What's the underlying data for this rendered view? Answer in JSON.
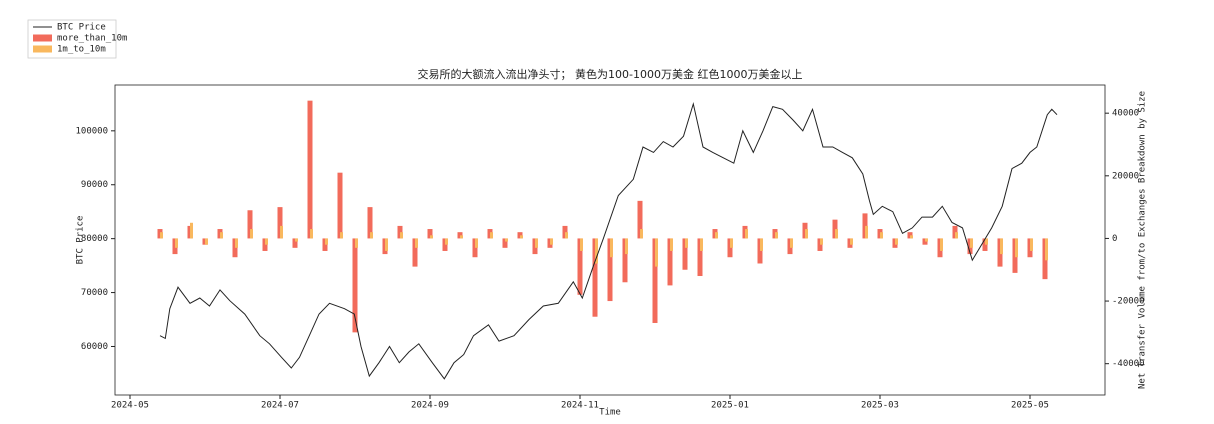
{
  "chart_data": {
    "type": "combo",
    "title": "交易所的大额流入流出净头寸； 黄色为100-1000万美金 红色1000万美金以上",
    "xlabel": "Time",
    "ylabel": "BTC Price",
    "y2label": "Net Transfer Volume from/to Exchanges Breakdown by Size",
    "legend": "upper left",
    "xlim": [
      4.8,
      18
    ],
    "xticks": [
      {
        "value": 5,
        "label": "2024-05"
      },
      {
        "value": 7,
        "label": "2024-07"
      },
      {
        "value": 9,
        "label": "2024-09"
      },
      {
        "value": 11,
        "label": "2024-11"
      },
      {
        "value": 13,
        "label": "2025-01"
      },
      {
        "value": 15,
        "label": "2025-03"
      },
      {
        "value": 17,
        "label": "2025-05"
      }
    ],
    "ylim": [
      51000,
      108500
    ],
    "yticks": [
      60000,
      70000,
      80000,
      90000,
      100000
    ],
    "y2lim": [
      -50000,
      49000
    ],
    "y2ticks": [
      -40000,
      -20000,
      0,
      20000,
      40000
    ],
    "series": [
      {
        "name": "BTC Price",
        "type": "line",
        "color": "#222222",
        "x": [
          5.4,
          5.47,
          5.53,
          5.64,
          5.8,
          5.93,
          6.06,
          6.2,
          6.33,
          6.53,
          6.73,
          6.86,
          7.02,
          7.15,
          7.26,
          7.39,
          7.52,
          7.66,
          7.86,
          7.99,
          8.08,
          8.19,
          8.32,
          8.46,
          8.59,
          8.72,
          8.85,
          9.03,
          9.19,
          9.32,
          9.45,
          9.58,
          9.78,
          9.92,
          10.12,
          10.32,
          10.51,
          10.71,
          10.91,
          11.03,
          11.18,
          11.31,
          11.51,
          11.71,
          11.84,
          11.98,
          12.11,
          12.24,
          12.38,
          12.51,
          12.64,
          12.77,
          12.91,
          13.05,
          13.17,
          13.31,
          13.44,
          13.57,
          13.7,
          13.84,
          13.97,
          14.1,
          14.24,
          14.37,
          14.5,
          14.63,
          14.77,
          14.86,
          14.91,
          15.03,
          15.17,
          15.3,
          15.43,
          15.56,
          15.7,
          15.83,
          15.96,
          16.1,
          16.23,
          16.36,
          16.49,
          16.63,
          16.76,
          16.89,
          17.0,
          17.09,
          17.23,
          17.29,
          17.36
        ],
        "values": [
          62000,
          61500,
          67000,
          71000,
          68000,
          69000,
          67500,
          70500,
          68500,
          66000,
          62000,
          60500,
          58000,
          56000,
          58000,
          62000,
          66000,
          68000,
          67000,
          66000,
          60000,
          54500,
          57000,
          60000,
          57000,
          59000,
          60500,
          57000,
          54000,
          57000,
          58500,
          62000,
          64000,
          61000,
          62000,
          65000,
          67500,
          68000,
          72000,
          69000,
          75000,
          80000,
          88000,
          91000,
          97000,
          96000,
          98000,
          97000,
          99000,
          105000,
          97000,
          96000,
          95000,
          94000,
          100000,
          96000,
          100000,
          104500,
          104000,
          102000,
          100000,
          104000,
          97000,
          97000,
          96000,
          95000,
          92000,
          87000,
          84500,
          86000,
          85000,
          81000,
          82000,
          84000,
          84000,
          86000,
          83000,
          82000,
          76000,
          79000,
          82000,
          86000,
          93000,
          94000,
          96000,
          97000,
          103000,
          104000,
          103000
        ]
      },
      {
        "name": "more_than_10m",
        "type": "bar",
        "axis": "y2",
        "color": "#f26b5b",
        "x": [
          5.4,
          5.6,
          5.8,
          6.0,
          6.2,
          6.4,
          6.6,
          6.8,
          7.0,
          7.2,
          7.4,
          7.6,
          7.8,
          8.0,
          8.2,
          8.4,
          8.6,
          8.8,
          9.0,
          9.2,
          9.4,
          9.6,
          9.8,
          10.0,
          10.2,
          10.4,
          10.6,
          10.8,
          11.0,
          11.2,
          11.4,
          11.6,
          11.8,
          12.0,
          12.2,
          12.4,
          12.6,
          12.8,
          13.0,
          13.2,
          13.4,
          13.6,
          13.8,
          14.0,
          14.2,
          14.4,
          14.6,
          14.8,
          15.0,
          15.2,
          15.4,
          15.6,
          15.8,
          16.0,
          16.2,
          16.4,
          16.6,
          16.8,
          17.0,
          17.2
        ],
        "values": [
          3000,
          -5000,
          4000,
          -2000,
          3000,
          -6000,
          9000,
          -4000,
          10000,
          -3000,
          44000,
          -4000,
          21000,
          -30000,
          10000,
          -5000,
          4000,
          -9000,
          3000,
          -4000,
          2000,
          -6000,
          3000,
          -3000,
          2000,
          -5000,
          -3000,
          4000,
          -18000,
          -25000,
          -20000,
          -14000,
          12000,
          -27000,
          -15000,
          -10000,
          -12000,
          3000,
          -6000,
          4000,
          -8000,
          3000,
          -5000,
          5000,
          -4000,
          6000,
          -3000,
          8000,
          3000,
          -3000,
          2000,
          -2000,
          -6000,
          4000,
          -5000,
          -4000,
          -9000,
          -11000,
          -6000,
          -13000
        ]
      },
      {
        "name": "1m_to_10m",
        "type": "bar",
        "axis": "y2",
        "color": "#f9b85e",
        "x": [
          5.4,
          5.6,
          5.8,
          6.0,
          6.2,
          6.4,
          6.6,
          6.8,
          7.0,
          7.2,
          7.4,
          7.6,
          7.8,
          8.0,
          8.2,
          8.4,
          8.6,
          8.8,
          9.0,
          9.2,
          9.4,
          9.6,
          9.8,
          10.0,
          10.2,
          10.4,
          10.6,
          10.8,
          11.0,
          11.2,
          11.4,
          11.6,
          11.8,
          12.0,
          12.2,
          12.4,
          12.6,
          12.8,
          13.0,
          13.2,
          13.4,
          13.6,
          13.8,
          14.0,
          14.2,
          14.4,
          14.6,
          14.8,
          15.0,
          15.2,
          15.4,
          15.6,
          15.8,
          16.0,
          16.2,
          16.4,
          16.6,
          16.8,
          17.0,
          17.2
        ],
        "values": [
          2000,
          -3000,
          5000,
          -2000,
          2000,
          -3000,
          3000,
          -2000,
          4000,
          -1000,
          3000,
          -2000,
          2000,
          -3000,
          2000,
          -4000,
          2000,
          -3000,
          1000,
          -2000,
          1000,
          -3000,
          2000,
          -1000,
          1000,
          -3000,
          -2000,
          2000,
          -4000,
          -8000,
          -6000,
          -5000,
          3000,
          -9000,
          -4000,
          -3000,
          -4000,
          2000,
          -3000,
          3000,
          -4000,
          2000,
          -3000,
          3000,
          -2000,
          3000,
          -2000,
          4000,
          2000,
          -2000,
          1000,
          -1000,
          -4000,
          2000,
          -3000,
          -2000,
          -5000,
          -6000,
          -4000,
          -7000
        ]
      }
    ]
  }
}
